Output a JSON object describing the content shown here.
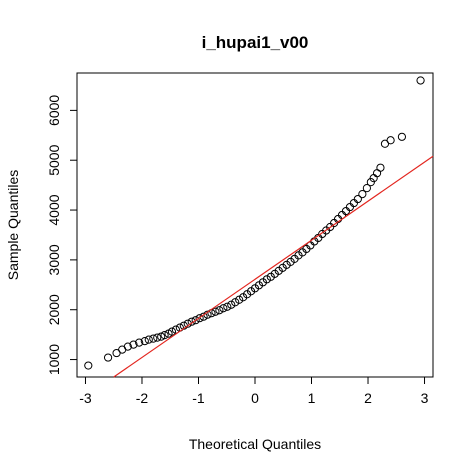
{
  "chart_data": {
    "type": "scatter",
    "title": "i_hupai1_v00",
    "xlabel": "Theoretical Quantiles",
    "ylabel": "Sample Quantiles",
    "xlim": [
      -3.15,
      3.15
    ],
    "ylim": [
      650,
      6750
    ],
    "x_ticks": [
      -3,
      -2,
      -1,
      0,
      1,
      2,
      3
    ],
    "y_ticks": [
      1000,
      2000,
      3000,
      4000,
      5000,
      6000
    ],
    "reference_line": {
      "color": "#e3261f",
      "x": [
        -2.5,
        3.15
      ],
      "y": [
        650,
        5080
      ]
    },
    "grid": false,
    "series": [
      {
        "marker": "open-circle",
        "points": [
          [
            -2.95,
            880
          ],
          [
            -2.6,
            1040
          ],
          [
            -2.45,
            1130
          ],
          [
            -2.35,
            1200
          ],
          [
            -2.25,
            1260
          ],
          [
            -2.15,
            1300
          ],
          [
            -2.05,
            1340
          ],
          [
            -1.95,
            1370
          ],
          [
            -1.88,
            1400
          ],
          [
            -1.8,
            1420
          ],
          [
            -1.73,
            1440
          ],
          [
            -1.66,
            1460
          ],
          [
            -1.6,
            1490
          ],
          [
            -1.53,
            1520
          ],
          [
            -1.47,
            1560
          ],
          [
            -1.4,
            1600
          ],
          [
            -1.33,
            1640
          ],
          [
            -1.26,
            1680
          ],
          [
            -1.19,
            1720
          ],
          [
            -1.12,
            1760
          ],
          [
            -1.05,
            1790
          ],
          [
            -0.98,
            1830
          ],
          [
            -0.91,
            1860
          ],
          [
            -0.84,
            1900
          ],
          [
            -0.77,
            1930
          ],
          [
            -0.7,
            1960
          ],
          [
            -0.63,
            1990
          ],
          [
            -0.56,
            2030
          ],
          [
            -0.49,
            2060
          ],
          [
            -0.42,
            2100
          ],
          [
            -0.35,
            2150
          ],
          [
            -0.28,
            2200
          ],
          [
            -0.21,
            2250
          ],
          [
            -0.14,
            2310
          ],
          [
            -0.07,
            2370
          ],
          [
            0.0,
            2430
          ],
          [
            0.07,
            2490
          ],
          [
            0.14,
            2550
          ],
          [
            0.21,
            2610
          ],
          [
            0.28,
            2660
          ],
          [
            0.35,
            2720
          ],
          [
            0.42,
            2780
          ],
          [
            0.49,
            2840
          ],
          [
            0.56,
            2900
          ],
          [
            0.63,
            2960
          ],
          [
            0.7,
            3020
          ],
          [
            0.77,
            3090
          ],
          [
            0.84,
            3150
          ],
          [
            0.91,
            3220
          ],
          [
            0.98,
            3290
          ],
          [
            1.05,
            3370
          ],
          [
            1.12,
            3440
          ],
          [
            1.19,
            3520
          ],
          [
            1.26,
            3590
          ],
          [
            1.33,
            3660
          ],
          [
            1.4,
            3740
          ],
          [
            1.47,
            3820
          ],
          [
            1.54,
            3900
          ],
          [
            1.61,
            3980
          ],
          [
            1.68,
            4060
          ],
          [
            1.75,
            4140
          ],
          [
            1.82,
            4220
          ],
          [
            1.9,
            4320
          ],
          [
            1.98,
            4440
          ],
          [
            2.05,
            4560
          ],
          [
            2.1,
            4640
          ],
          [
            2.16,
            4740
          ],
          [
            2.22,
            4850
          ],
          [
            2.3,
            5330
          ],
          [
            2.4,
            5400
          ],
          [
            2.6,
            5470
          ],
          [
            2.93,
            6600
          ]
        ]
      }
    ]
  }
}
